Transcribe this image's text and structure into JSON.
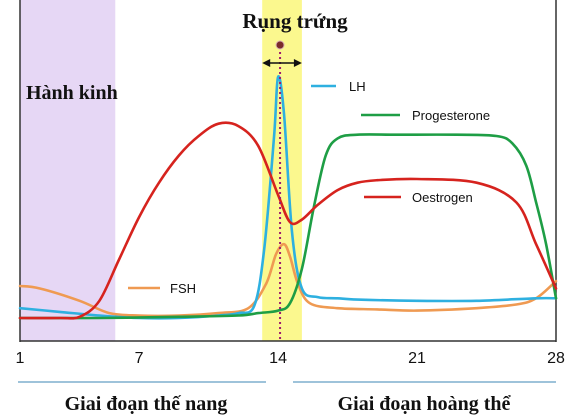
{
  "annotations": {
    "ovulation": "Rụng trứng",
    "menstruation": "Hành kinh",
    "follicular_phase": "Giai đoạn thế nang",
    "luteal_phase": "Giai đoạn hoàng thể"
  },
  "chart_data": {
    "type": "line",
    "title": "",
    "xlabel": "",
    "ylabel": "",
    "x_ticks": [
      1,
      7,
      14,
      21,
      28
    ],
    "xlim": [
      1,
      28
    ],
    "ylim": [
      0,
      1
    ],
    "grid": false,
    "shaded_regions": [
      {
        "label": "Hành kinh",
        "x_start": 1,
        "x_end": 5.8,
        "color": "#e6d7f5"
      },
      {
        "label": "",
        "x_start": 13.2,
        "x_end": 15.2,
        "color": "#fbf88e"
      }
    ],
    "ovulation_day": 14.1,
    "series": [
      {
        "name": "LH",
        "color": "#2eb0e0",
        "x": [
          1,
          3,
          5,
          7,
          9,
          11,
          12,
          12.8,
          13.3,
          13.8,
          14.0,
          14.3,
          14.7,
          15.2,
          16,
          17,
          18,
          21,
          24,
          27,
          28
        ],
        "y": [
          0.04,
          0.025,
          0.01,
          0.0,
          0.0,
          0.01,
          0.02,
          0.05,
          0.28,
          0.74,
          0.98,
          0.83,
          0.35,
          0.12,
          0.085,
          0.08,
          0.075,
          0.07,
          0.07,
          0.08,
          0.08
        ]
      },
      {
        "name": "FSH",
        "color": "#ef9a52",
        "x": [
          1,
          2,
          4,
          5.5,
          7,
          9,
          11,
          12.5,
          13.4,
          13.9,
          14.3,
          14.6,
          15.0,
          15.6,
          17,
          19,
          21,
          24,
          26,
          27,
          28
        ],
        "y": [
          0.13,
          0.12,
          0.07,
          0.02,
          0.01,
          0.01,
          0.02,
          0.04,
          0.14,
          0.26,
          0.3,
          0.25,
          0.14,
          0.06,
          0.04,
          0.035,
          0.03,
          0.04,
          0.055,
          0.08,
          0.15
        ]
      },
      {
        "name": "Oestrogen",
        "color": "#d6231e",
        "x": [
          1,
          3,
          4,
          5,
          6,
          7,
          8,
          9,
          10,
          11,
          12,
          13,
          14,
          14.6,
          15.2,
          16,
          17,
          18,
          19,
          21,
          24,
          26,
          27,
          28
        ],
        "y": [
          0.0,
          0.0,
          0.005,
          0.07,
          0.24,
          0.41,
          0.55,
          0.66,
          0.74,
          0.79,
          0.78,
          0.7,
          0.5,
          0.39,
          0.4,
          0.46,
          0.52,
          0.55,
          0.56,
          0.565,
          0.55,
          0.47,
          0.3,
          0.12
        ]
      },
      {
        "name": "Progesterone",
        "color": "#1e9e45",
        "x": [
          1,
          5,
          9,
          12,
          13,
          14,
          14.6,
          15.2,
          15.8,
          16.4,
          17,
          18,
          20,
          23,
          25,
          25.8,
          26.5,
          27,
          27.5,
          28
        ],
        "y": [
          0.0,
          0.0,
          0.005,
          0.01,
          0.02,
          0.03,
          0.06,
          0.2,
          0.45,
          0.66,
          0.73,
          0.745,
          0.745,
          0.745,
          0.74,
          0.71,
          0.62,
          0.47,
          0.3,
          0.08
        ]
      }
    ],
    "legend": "inline labels"
  }
}
